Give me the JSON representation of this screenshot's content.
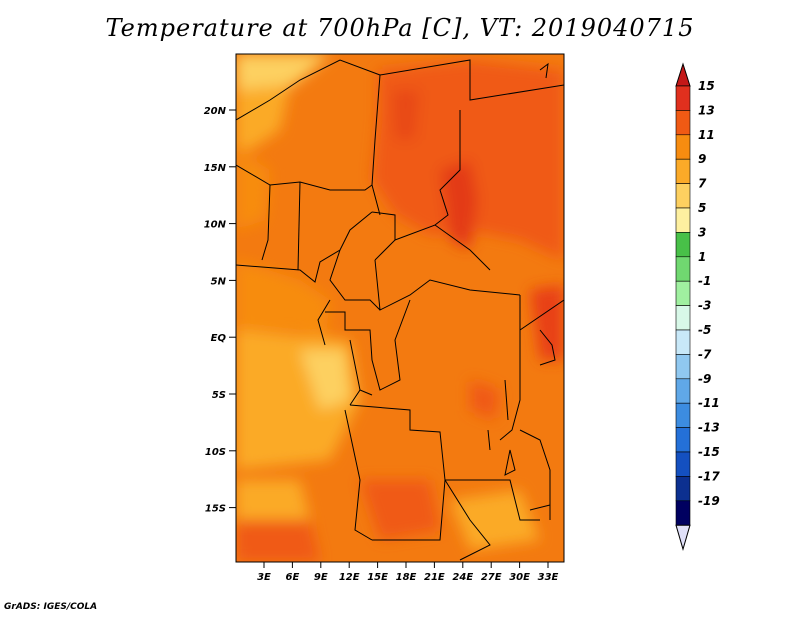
{
  "title": "Temperature at 700hPa [C], VT: 2019040715",
  "credit": "GrADS: IGES/COLA",
  "map": {
    "lat_labels": [
      "20N",
      "15N",
      "10N",
      "5N",
      "EQ",
      "5S",
      "10S",
      "15S"
    ],
    "lon_labels": [
      "3E",
      "6E",
      "9E",
      "12E",
      "15E",
      "18E",
      "21E",
      "24E",
      "27E",
      "30E",
      "33E"
    ]
  },
  "colorbar": {
    "levels": [
      "15",
      "13",
      "11",
      "9",
      "7",
      "5",
      "3",
      "1",
      "-1",
      "-3",
      "-5",
      "-7",
      "-9",
      "-11",
      "-13",
      "-15",
      "-17",
      "-19"
    ],
    "colors": [
      "#e0301e",
      "#f05a14",
      "#f78c10",
      "#fbaa28",
      "#fdd060",
      "#fef0a0",
      "#48c048",
      "#70d870",
      "#a0f0a0",
      "#d8f8e8",
      "#c8e8f8",
      "#90c8f0",
      "#60a8e8",
      "#3c8ce0",
      "#2470d8",
      "#1450c0",
      "#0c3090",
      "#000060"
    ],
    "top_arrow_color": "#c41818",
    "bottom_arrow_color": "#e0e0f8"
  }
}
